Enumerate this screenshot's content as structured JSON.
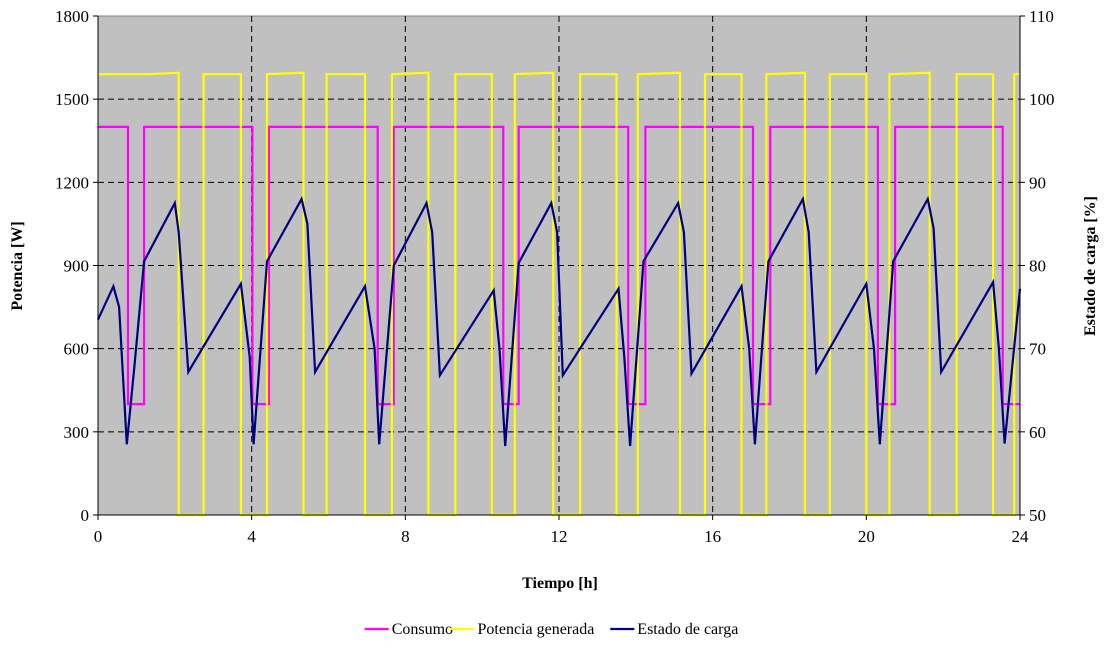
{
  "chart_data": {
    "type": "line",
    "title": "",
    "xlabel": "Tiempo [h]",
    "ylabel": "Potencia [W]",
    "y2label": "Estado de carga [%]",
    "xlim": [
      0,
      24
    ],
    "ylim": [
      0,
      1800
    ],
    "y2lim": [
      50,
      110
    ],
    "x_ticks": [
      "0",
      "4",
      "8",
      "12",
      "16",
      "20",
      "24"
    ],
    "y_ticks": [
      "0",
      "300",
      "600",
      "900",
      "1200",
      "1500",
      "1800"
    ],
    "y2_ticks": [
      "50",
      "60",
      "70",
      "80",
      "90",
      "100",
      "110"
    ],
    "grid": true,
    "legend_position": "bottom",
    "background": "#c0c0c0",
    "series": [
      {
        "name": "Consumo",
        "axis": "left",
        "color": "#ff00ff",
        "step": true,
        "x": [
          0,
          0.78,
          0.78,
          1.2,
          1.2,
          4.02,
          4.02,
          4.45,
          4.45,
          7.28,
          7.28,
          7.7,
          7.7,
          10.55,
          10.55,
          10.95,
          10.95,
          13.8,
          13.8,
          14.25,
          14.25,
          17.05,
          17.05,
          17.5,
          17.5,
          20.3,
          20.3,
          20.75,
          20.75,
          23.55,
          23.55,
          24
        ],
        "values": [
          1400,
          1400,
          400,
          400,
          1400,
          1400,
          400,
          400,
          1400,
          1400,
          400,
          400,
          1400,
          1400,
          400,
          400,
          1400,
          1400,
          400,
          400,
          1400,
          1400,
          400,
          400,
          1400,
          1400,
          400,
          400,
          1400,
          1400,
          400,
          400
        ]
      },
      {
        "name": "Potencia generada",
        "axis": "left",
        "color": "#ffff00",
        "step": true,
        "x": [
          0,
          0.12,
          0.58,
          0.58,
          1.3,
          1.3,
          2.1,
          2.1,
          2.75,
          2.75,
          3.72,
          3.72,
          4.4,
          4.4,
          5.35,
          5.35,
          5.95,
          5.95,
          6.95,
          6.95,
          7.65,
          7.65,
          8.6,
          8.6,
          9.3,
          9.3,
          10.25,
          10.25,
          10.85,
          10.85,
          11.85,
          11.85,
          12.55,
          12.55,
          13.5,
          13.5,
          14.05,
          14.05,
          15.15,
          15.15,
          15.8,
          15.8,
          16.75,
          16.75,
          17.4,
          17.4,
          18.4,
          18.4,
          19.05,
          19.05,
          20.0,
          20.0,
          20.6,
          20.6,
          21.65,
          21.65,
          22.35,
          22.35,
          23.3,
          23.3,
          23.85,
          23.85,
          24
        ],
        "values": [
          1590,
          1590,
          1590,
          1590,
          1590,
          1590,
          1595,
          0,
          0,
          1590,
          1590,
          0,
          0,
          1590,
          1595,
          0,
          0,
          1590,
          1590,
          0,
          0,
          1590,
          1595,
          0,
          0,
          1590,
          1590,
          0,
          0,
          1590,
          1595,
          0,
          0,
          1590,
          1590,
          0,
          0,
          1590,
          1595,
          0,
          0,
          1590,
          1590,
          0,
          0,
          1590,
          1595,
          0,
          0,
          1590,
          1590,
          0,
          0,
          1590,
          1595,
          0,
          0,
          1590,
          1590,
          0,
          0,
          1590,
          1590
        ]
      },
      {
        "name": "Estado de carga",
        "axis": "right",
        "color": "#000080",
        "step": false,
        "x": [
          0,
          0.4,
          0.55,
          0.75,
          0.95,
          1.2,
          2.0,
          2.1,
          2.35,
          3.72,
          3.95,
          4.05,
          4.4,
          5.3,
          5.45,
          5.65,
          6.95,
          7.2,
          7.32,
          7.7,
          8.55,
          8.7,
          8.9,
          10.3,
          10.45,
          10.6,
          10.95,
          11.8,
          11.95,
          12.1,
          13.55,
          13.7,
          13.85,
          14.2,
          15.1,
          15.25,
          15.45,
          16.75,
          16.95,
          17.1,
          17.45,
          18.35,
          18.5,
          18.7,
          20.0,
          20.2,
          20.35,
          20.7,
          21.6,
          21.75,
          21.95,
          23.3,
          23.45,
          23.6,
          24.0
        ],
        "values": [
          73.5,
          77.5,
          75.0,
          58.5,
          68.0,
          80.5,
          87.5,
          84.0,
          67.2,
          77.8,
          69.0,
          58.5,
          80.5,
          88.0,
          85.0,
          67.2,
          77.5,
          70.0,
          58.5,
          80.0,
          87.5,
          84.0,
          66.8,
          77.0,
          70.0,
          58.3,
          80.3,
          87.5,
          84.0,
          66.8,
          77.2,
          69.0,
          58.3,
          80.5,
          87.5,
          84.0,
          67.0,
          77.5,
          70.0,
          58.5,
          80.5,
          88.0,
          84.0,
          67.2,
          77.8,
          70.0,
          58.5,
          80.5,
          88.0,
          84.5,
          67.2,
          78.0,
          70.0,
          58.6,
          77.2
        ]
      }
    ]
  }
}
